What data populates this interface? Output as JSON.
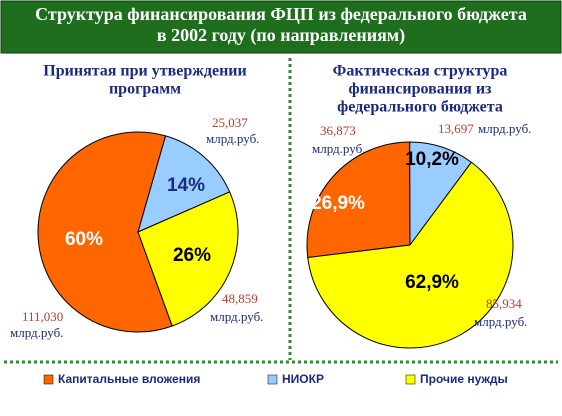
{
  "title": [
    "Структура финансирования ФЦП из федерального бюджета",
    "в 2002 году (по направлениям)"
  ],
  "legend": [
    {
      "name": "Капитальные вложения",
      "color": "#ff6600"
    },
    {
      "name": "НИОКР",
      "color": "#99ccff"
    },
    {
      "name": "Прочие нужды",
      "color": "#ffff00"
    }
  ],
  "chart_data": [
    {
      "type": "pie",
      "title": [
        "Принятая при утверждении",
        "программ"
      ],
      "values": [
        60,
        14,
        26
      ],
      "value_labels": [
        "60%",
        "14%",
        "26%"
      ],
      "amounts": [
        111.03,
        25.037,
        48.859
      ],
      "amount_labels": [
        "111,030",
        "25,037",
        "48,859"
      ],
      "unit": "млрд.руб."
    },
    {
      "type": "pie",
      "title": [
        "Фактическая структура",
        "финансирования из",
        "федерального бюджета"
      ],
      "values": [
        26.9,
        10.2,
        62.9
      ],
      "value_labels": [
        "26,9%",
        "10,2%",
        "62,9%"
      ],
      "amounts": [
        36.873,
        13.697,
        85.934
      ],
      "amount_labels": [
        "36,873",
        "13,697",
        "85,934"
      ],
      "unit": "млрд.руб."
    }
  ]
}
